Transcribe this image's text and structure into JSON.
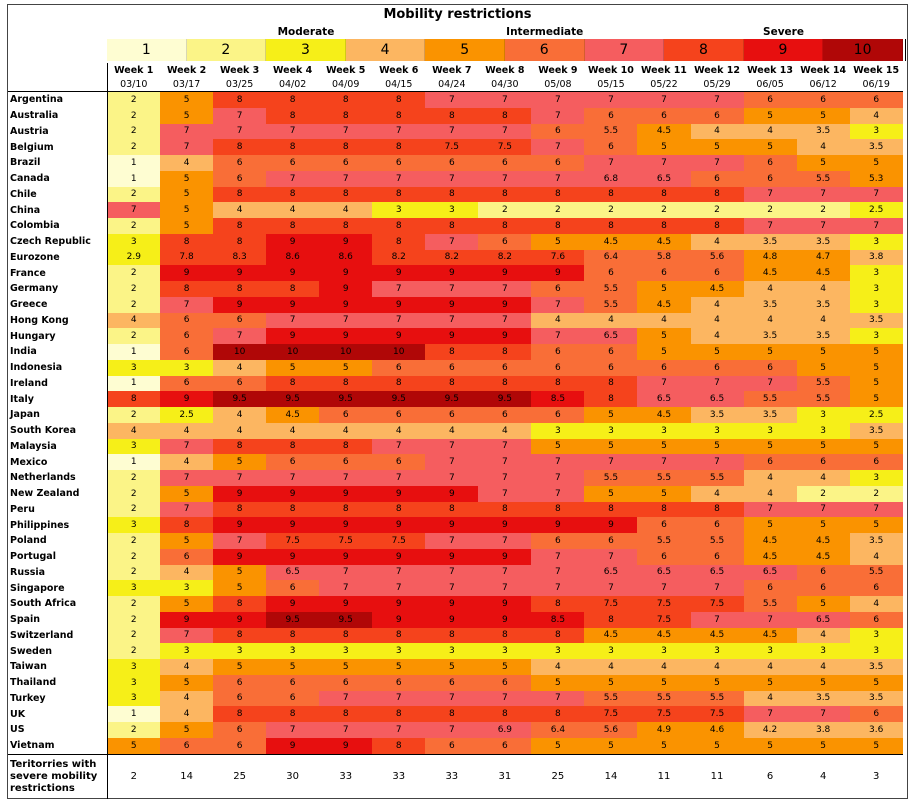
{
  "chart_data": {
    "type": "heatmap",
    "title": "Mobility restrictions",
    "scale_groups": [
      "Moderate",
      "Intermediate",
      "Severe"
    ],
    "scale_levels": [
      1,
      2,
      3,
      4,
      5,
      6,
      7,
      8,
      9,
      10
    ],
    "scale_colors": [
      "#fefdd2",
      "#fbf487",
      "#f6ef18",
      "#fcb661",
      "#fa9300",
      "#f96e37",
      "#f55d5f",
      "#f5431c",
      "#e70f0f",
      "#b00707"
    ],
    "weeks": [
      "Week 1",
      "Week 2",
      "Week 3",
      "Week 4",
      "Week 5",
      "Week 6",
      "Week 7",
      "Week 8",
      "Week 9",
      "Week 10",
      "Week 11",
      "Week 12",
      "Week 13",
      "Week 14",
      "Week 15"
    ],
    "dates": [
      "03/10",
      "03/17",
      "03/25",
      "04/02",
      "04/09",
      "04/15",
      "04/24",
      "04/30",
      "05/08",
      "05/15",
      "05/22",
      "05/29",
      "06/05",
      "06/12",
      "06/19"
    ],
    "rows": [
      {
        "country": "Argentina",
        "values": [
          2,
          5,
          8,
          8,
          8,
          8,
          7,
          7,
          7,
          7,
          7,
          7,
          6,
          6,
          6
        ]
      },
      {
        "country": "Australia",
        "values": [
          2,
          5,
          7,
          8,
          8,
          8,
          8,
          8,
          7,
          6,
          6,
          6,
          5,
          5,
          4
        ]
      },
      {
        "country": "Austria",
        "values": [
          2,
          7,
          7,
          7,
          7,
          7,
          7,
          7,
          6,
          5.5,
          4.5,
          4,
          4,
          3.5,
          3
        ]
      },
      {
        "country": "Belgium",
        "values": [
          2,
          7,
          8,
          8,
          8,
          8,
          7.5,
          7.5,
          7,
          6,
          5,
          5,
          5,
          4,
          3.5
        ]
      },
      {
        "country": "Brazil",
        "values": [
          1,
          4,
          6,
          6,
          6,
          6,
          6,
          6,
          6,
          7,
          7,
          7,
          6,
          5,
          5
        ]
      },
      {
        "country": "Canada",
        "values": [
          1,
          5,
          6,
          7,
          7,
          7,
          7,
          7,
          7,
          6.8,
          6.5,
          6,
          6,
          5.5,
          5.3
        ]
      },
      {
        "country": "Chile",
        "values": [
          2,
          5,
          8,
          8,
          8,
          8,
          8,
          8,
          8,
          8,
          8,
          8,
          7,
          7,
          7
        ]
      },
      {
        "country": "China",
        "values": [
          7,
          5,
          4,
          4,
          4,
          3,
          3,
          2,
          2,
          2,
          2,
          2,
          2,
          2,
          2.5
        ]
      },
      {
        "country": "Colombia",
        "values": [
          2,
          5,
          8,
          8,
          8,
          8,
          8,
          8,
          8,
          8,
          8,
          8,
          7,
          7,
          7
        ]
      },
      {
        "country": "Czech Republic",
        "values": [
          3,
          8,
          8,
          9,
          9,
          8,
          7,
          6,
          5,
          4.5,
          4.5,
          4,
          3.5,
          3.5,
          3
        ]
      },
      {
        "country": "Eurozone",
        "values": [
          2.9,
          7.8,
          8.3,
          8.6,
          8.6,
          8.2,
          8.2,
          8.2,
          7.6,
          6.4,
          5.8,
          5.6,
          4.8,
          4.7,
          3.8
        ]
      },
      {
        "country": "France",
        "values": [
          2,
          9,
          9,
          9,
          9,
          9,
          9,
          9,
          9,
          6,
          6,
          6,
          4.5,
          4.5,
          3
        ]
      },
      {
        "country": "Germany",
        "values": [
          2,
          8,
          8,
          8,
          9,
          7,
          7,
          7,
          6,
          5.5,
          5,
          4.5,
          4,
          4,
          3
        ]
      },
      {
        "country": "Greece",
        "values": [
          2,
          7,
          9,
          9,
          9,
          9,
          9,
          9,
          7,
          5.5,
          4.5,
          4,
          3.5,
          3.5,
          3
        ]
      },
      {
        "country": "Hong Kong",
        "values": [
          4,
          6,
          6,
          7,
          7,
          7,
          7,
          7,
          4,
          4,
          4,
          4,
          4,
          4,
          3.5
        ]
      },
      {
        "country": "Hungary",
        "values": [
          2,
          6,
          7,
          9,
          9,
          9,
          9,
          9,
          7,
          6.5,
          5,
          4,
          3.5,
          3.5,
          3
        ]
      },
      {
        "country": "India",
        "values": [
          1,
          6,
          10,
          10,
          10,
          10,
          8,
          8,
          6,
          6,
          5,
          5,
          5,
          5,
          5
        ]
      },
      {
        "country": "Indonesia",
        "values": [
          3,
          3,
          4,
          5,
          5,
          6,
          6,
          6,
          6,
          6,
          6,
          6,
          6,
          5,
          5
        ]
      },
      {
        "country": "Ireland",
        "values": [
          1,
          6,
          6,
          8,
          8,
          8,
          8,
          8,
          8,
          8,
          7,
          7,
          7,
          5.5,
          5
        ]
      },
      {
        "country": "Italy",
        "values": [
          8,
          9,
          9.5,
          9.5,
          9.5,
          9.5,
          9.5,
          9.5,
          8.5,
          8,
          6.5,
          6.5,
          5.5,
          5.5,
          5
        ]
      },
      {
        "country": "Japan",
        "values": [
          2,
          2.5,
          4,
          4.5,
          6,
          6,
          6,
          6,
          6,
          5,
          4.5,
          3.5,
          3.5,
          3,
          2.5
        ]
      },
      {
        "country": "South Korea",
        "values": [
          4,
          4,
          4,
          4,
          4,
          4,
          4,
          4,
          3,
          3,
          3,
          3,
          3,
          3,
          3.5
        ]
      },
      {
        "country": "Malaysia",
        "values": [
          3,
          7,
          8,
          8,
          8,
          7,
          7,
          7,
          5,
          5,
          5,
          5,
          5,
          5,
          5
        ]
      },
      {
        "country": "Mexico",
        "values": [
          1,
          4,
          5,
          6,
          6,
          6,
          7,
          7,
          7,
          7,
          7,
          7,
          6,
          6,
          6
        ]
      },
      {
        "country": "Netherlands",
        "values": [
          2,
          7,
          7,
          7,
          7,
          7,
          7,
          7,
          7,
          5.5,
          5.5,
          5.5,
          4,
          4,
          3
        ]
      },
      {
        "country": "New Zealand",
        "values": [
          2,
          5,
          9,
          9,
          9,
          9,
          9,
          7,
          7,
          5,
          5,
          4,
          4,
          2,
          2
        ]
      },
      {
        "country": "Peru",
        "values": [
          2,
          7,
          8,
          8,
          8,
          8,
          8,
          8,
          8,
          8,
          8,
          8,
          7,
          7,
          7
        ]
      },
      {
        "country": "Philippines",
        "values": [
          3,
          8,
          9,
          9,
          9,
          9,
          9,
          9,
          9,
          9,
          6,
          6,
          5,
          5,
          5
        ]
      },
      {
        "country": "Poland",
        "values": [
          2,
          5,
          7,
          7.5,
          7.5,
          7.5,
          7,
          7,
          6,
          6,
          5.5,
          5.5,
          4.5,
          4.5,
          3.5
        ]
      },
      {
        "country": "Portugal",
        "values": [
          2,
          6,
          9,
          9,
          9,
          9,
          9,
          9,
          7,
          7,
          6,
          6,
          4.5,
          4.5,
          4
        ]
      },
      {
        "country": "Russia",
        "values": [
          2,
          4,
          5,
          6.5,
          7,
          7,
          7,
          7,
          7,
          6.5,
          6.5,
          6.5,
          6.5,
          6,
          5.5
        ]
      },
      {
        "country": "Singapore",
        "values": [
          3,
          3,
          5,
          6,
          7,
          7,
          7,
          7,
          7,
          7,
          7,
          7,
          6,
          6,
          6
        ]
      },
      {
        "country": "South Africa",
        "values": [
          2,
          5,
          8,
          9,
          9,
          9,
          9,
          9,
          8,
          7.5,
          7.5,
          7.5,
          5.5,
          5,
          4
        ]
      },
      {
        "country": "Spain",
        "values": [
          2,
          9,
          9,
          9.5,
          9.5,
          9,
          9,
          9,
          8.5,
          8,
          7.5,
          7,
          7,
          6.5,
          6
        ]
      },
      {
        "country": "Switzerland",
        "values": [
          2,
          7,
          8,
          8,
          8,
          8,
          8,
          8,
          8,
          4.5,
          4.5,
          4.5,
          4.5,
          4,
          3
        ]
      },
      {
        "country": "Sweden",
        "values": [
          2,
          3,
          3,
          3,
          3,
          3,
          3,
          3,
          3,
          3,
          3,
          3,
          3,
          3,
          3
        ]
      },
      {
        "country": "Taiwan",
        "values": [
          3,
          4,
          5,
          5,
          5,
          5,
          5,
          5,
          4,
          4,
          4,
          4,
          4,
          4,
          3.5
        ]
      },
      {
        "country": "Thailand",
        "values": [
          3,
          5,
          6,
          6,
          6,
          6,
          6,
          6,
          5,
          5,
          5,
          5,
          5,
          5,
          5
        ]
      },
      {
        "country": "Turkey",
        "values": [
          3,
          4,
          6,
          6,
          7,
          7,
          7,
          7,
          7,
          5.5,
          5.5,
          5.5,
          4,
          3.5,
          3.5
        ]
      },
      {
        "country": "UK",
        "values": [
          1,
          4,
          8,
          8,
          8,
          8,
          8,
          8,
          8,
          7.5,
          7.5,
          7.5,
          7,
          7,
          6
        ]
      },
      {
        "country": "US",
        "values": [
          2,
          5,
          6,
          7,
          7,
          7,
          7,
          6.9,
          6.4,
          5.6,
          4.9,
          4.6,
          4.2,
          3.8,
          3.6
        ]
      },
      {
        "country": "Vietnam",
        "values": [
          5,
          6,
          6,
          9,
          9,
          8,
          6,
          6,
          5,
          5,
          5,
          5,
          5,
          5,
          5
        ]
      }
    ],
    "summary": {
      "label": "Teritorries with severe mobility restrictions",
      "values": [
        2,
        14,
        25,
        30,
        33,
        33,
        33,
        31,
        25,
        14,
        11,
        11,
        6,
        4,
        3
      ]
    }
  }
}
